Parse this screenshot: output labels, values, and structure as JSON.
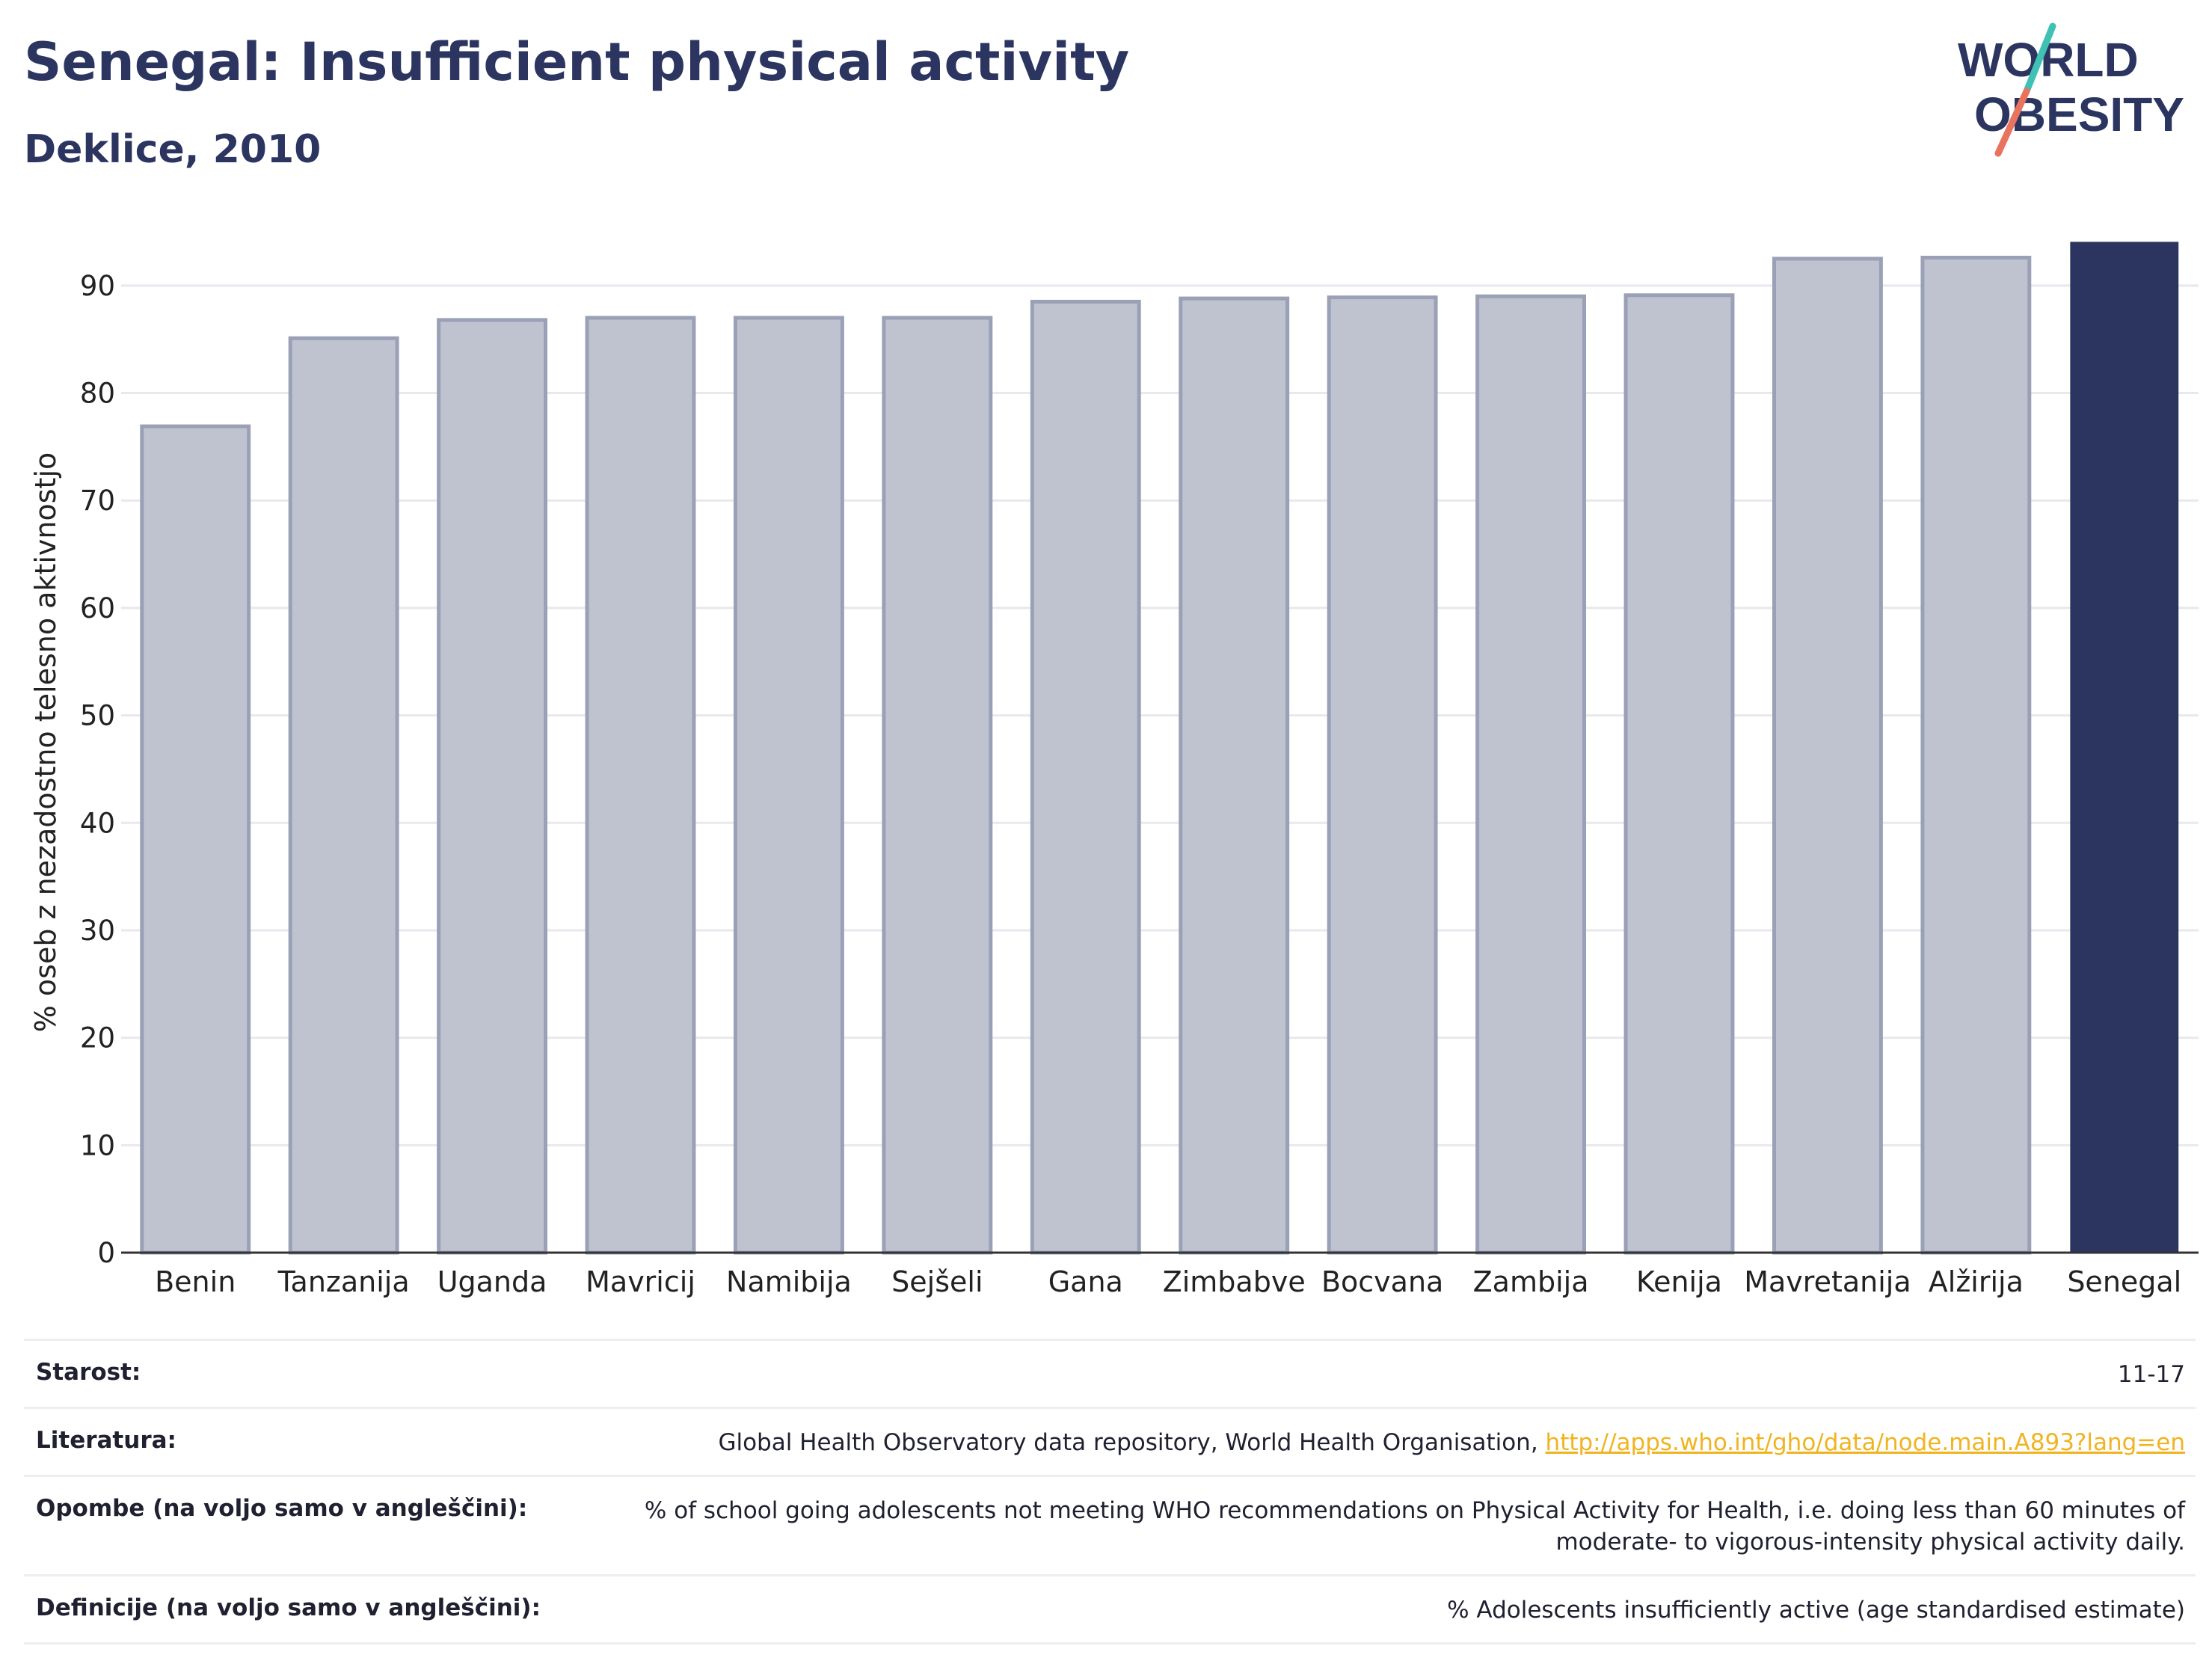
{
  "header": {
    "title": "Senegal: Insufficient physical activity",
    "subtitle": "Deklice, 2010",
    "logo": {
      "line1": "WORLD",
      "line2": "OBESITY",
      "accent_top": "#3fc1b4",
      "accent_bottom": "#e8735f",
      "text_color": "#2b3560"
    }
  },
  "chart_data": {
    "type": "bar",
    "title": "Senegal: Insufficient physical activity",
    "subtitle": "Deklice, 2010",
    "ylabel": "% oseb z nezadostno telesno aktivnostjo",
    "xlabel": "",
    "ylim": [
      0,
      95
    ],
    "yticks": [
      0,
      10,
      20,
      30,
      40,
      50,
      60,
      70,
      80,
      90
    ],
    "grid": true,
    "categories": [
      "Benin",
      "Tanzanija",
      "Uganda",
      "Mavricij",
      "Namibija",
      "Sejšeli",
      "Gana",
      "Zimbabve",
      "Bocvana",
      "Zambija",
      "Kenija",
      "Mavretanija",
      "Alžirija",
      "Senegal"
    ],
    "values": [
      76.9,
      85.1,
      86.8,
      87.0,
      87.0,
      87.0,
      88.5,
      88.8,
      88.9,
      89.0,
      89.1,
      92.5,
      92.6,
      94.0
    ],
    "highlight": "Senegal",
    "colors": {
      "bar": "#bfc3d0",
      "bar_edge": "#9aa0b6",
      "highlight": "#2b3560",
      "grid": "#e8e8ee",
      "axis": "#333333"
    }
  },
  "meta": {
    "rows": [
      {
        "label": "Starost:",
        "value": "11-17"
      },
      {
        "label": "Literatura:",
        "value": "Global Health Observatory data repository, World Health Organisation, ",
        "link": "http://apps.who.int/gho/data/node.main.A893?lang=en"
      },
      {
        "label": "Opombe (na voljo samo v angleščini):",
        "value": "% of school going adolescents not meeting WHO recommendations on Physical Activity for Health, i.e. doing less than 60 minutes of moderate- to vigorous-intensity physical activity daily."
      },
      {
        "label": "Definicije (na voljo samo v angleščini):",
        "value": "% Adolescents insufficiently active (age standardised estimate)"
      }
    ]
  }
}
